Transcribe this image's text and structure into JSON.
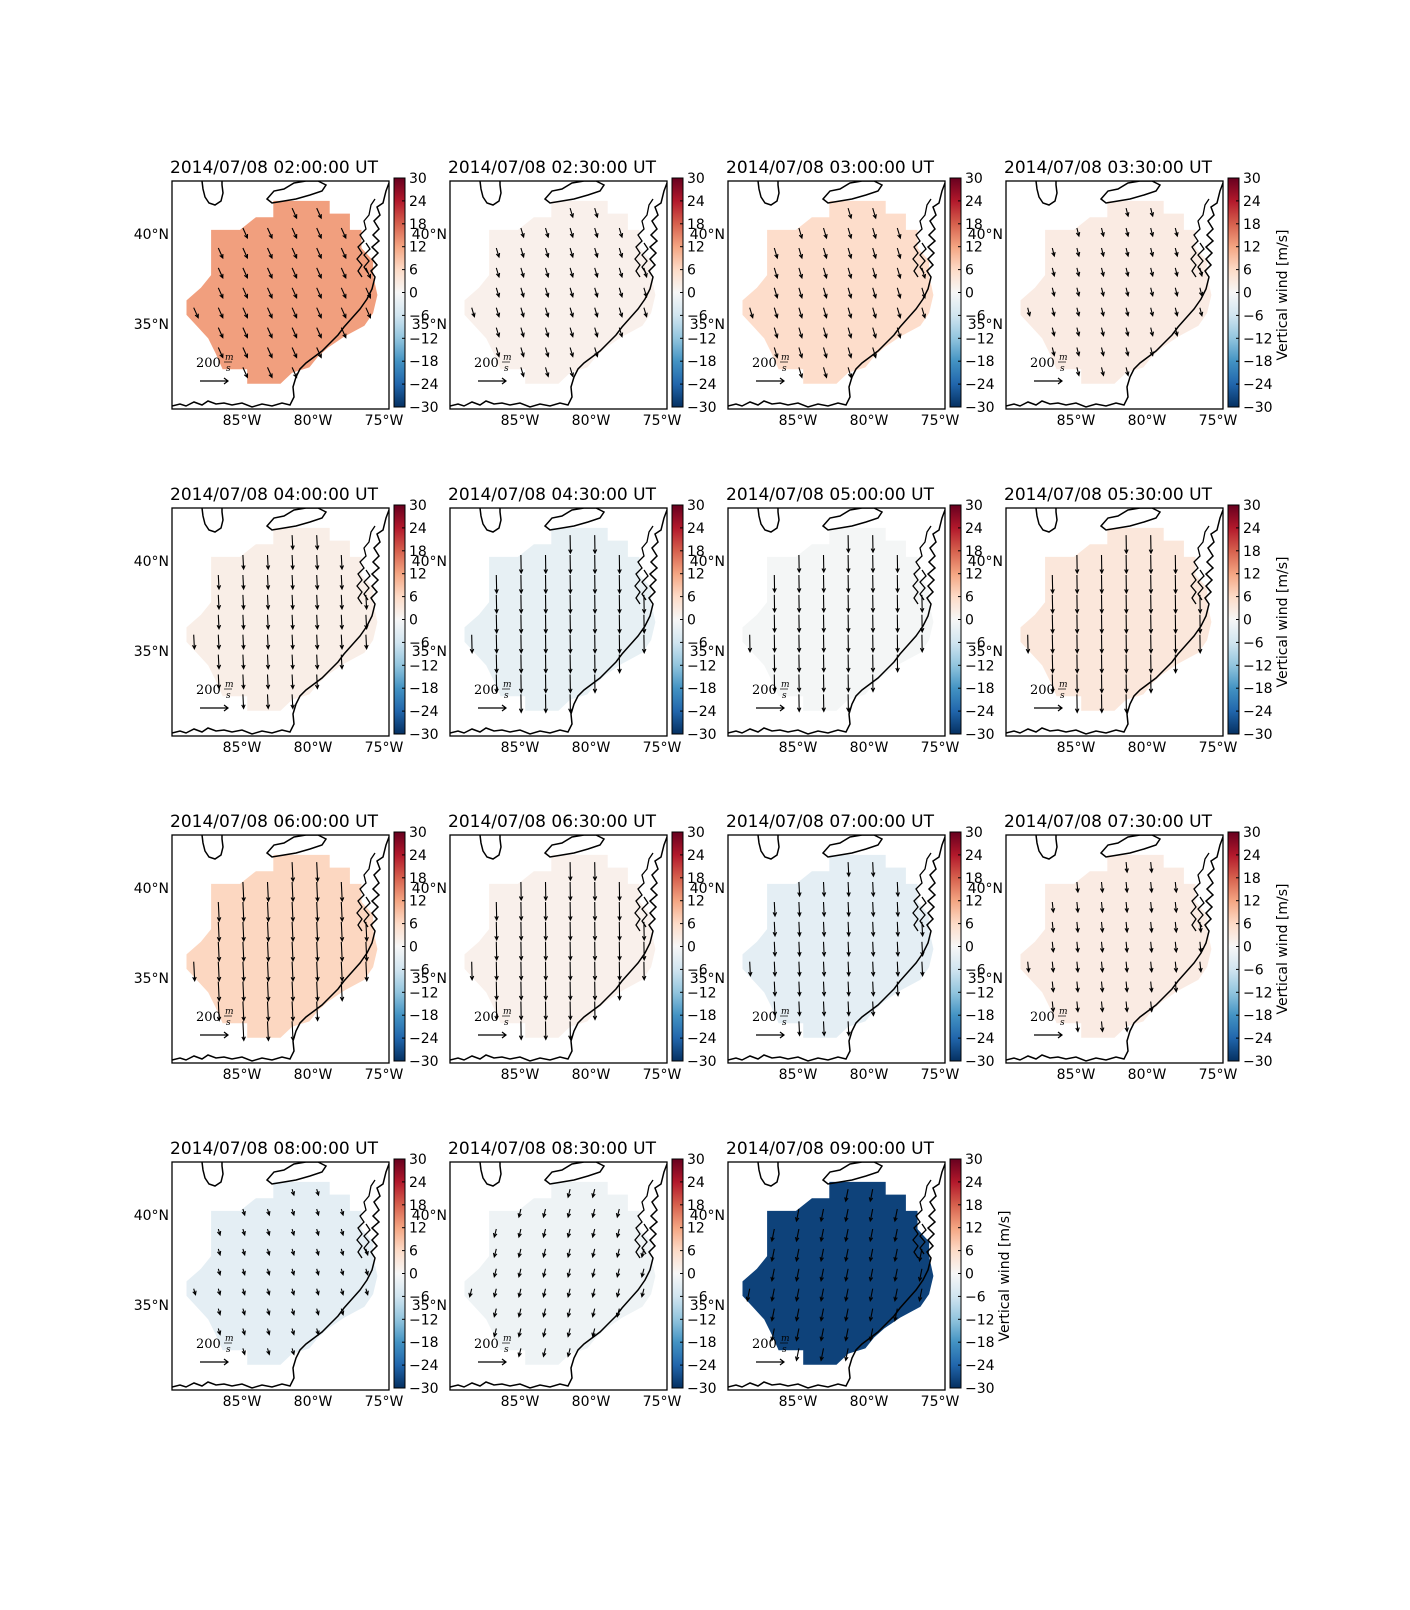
{
  "chart_data": {
    "type": "map",
    "colorbar": {
      "range": [
        -30,
        30
      ],
      "ticks": [
        "30",
        "24",
        "18",
        "12",
        "6",
        "0",
        "−6",
        "−12",
        "−18",
        "−24",
        "−30"
      ],
      "label": "Vertical wind [m/s]",
      "colormap": [
        "#053061",
        "#2166ac",
        "#4393c3",
        "#92c5de",
        "#d1e5f0",
        "#f7f7f7",
        "#fddbc7",
        "#f4a582",
        "#d6604d",
        "#b2182b",
        "#67001f"
      ]
    },
    "x_ticks": [
      "85°W",
      "80°W",
      "75°W"
    ],
    "y_ticks": [
      "40°N",
      "35°N"
    ],
    "key": {
      "value": "200",
      "unit_num": "m",
      "unit_den": "s"
    },
    "panels": [
      {
        "title": "2014/07/08 02:00:00 UT",
        "value": 12.5,
        "show_cbar_label": false
      },
      {
        "title": "2014/07/08 02:30:00 UT",
        "value": 1.5,
        "show_cbar_label": false
      },
      {
        "title": "2014/07/08 03:00:00 UT",
        "value": 5.5,
        "show_cbar_label": false
      },
      {
        "title": "2014/07/08 03:30:00 UT",
        "value": 2.5,
        "show_cbar_label": true
      },
      {
        "title": "2014/07/08 04:00:00 UT",
        "value": 2.0,
        "show_cbar_label": false
      },
      {
        "title": "2014/07/08 04:30:00 UT",
        "value": -2.5,
        "show_cbar_label": false
      },
      {
        "title": "2014/07/08 05:00:00 UT",
        "value": -0.5,
        "show_cbar_label": false
      },
      {
        "title": "2014/07/08 05:30:00 UT",
        "value": 3.5,
        "show_cbar_label": true
      },
      {
        "title": "2014/07/08 06:00:00 UT",
        "value": 6.5,
        "show_cbar_label": false
      },
      {
        "title": "2014/07/08 06:30:00 UT",
        "value": 1.5,
        "show_cbar_label": false
      },
      {
        "title": "2014/07/08 07:00:00 UT",
        "value": -3.0,
        "show_cbar_label": false
      },
      {
        "title": "2014/07/08 07:30:00 UT",
        "value": 2.5,
        "show_cbar_label": true
      },
      {
        "title": "2014/07/08 08:00:00 UT",
        "value": -3.0,
        "show_cbar_label": false
      },
      {
        "title": "2014/07/08 08:30:00 UT",
        "value": -1.5,
        "show_cbar_label": false
      },
      {
        "title": "2014/07/08 09:00:00 UT",
        "value": -28.0,
        "show_cbar_label": true
      }
    ]
  }
}
